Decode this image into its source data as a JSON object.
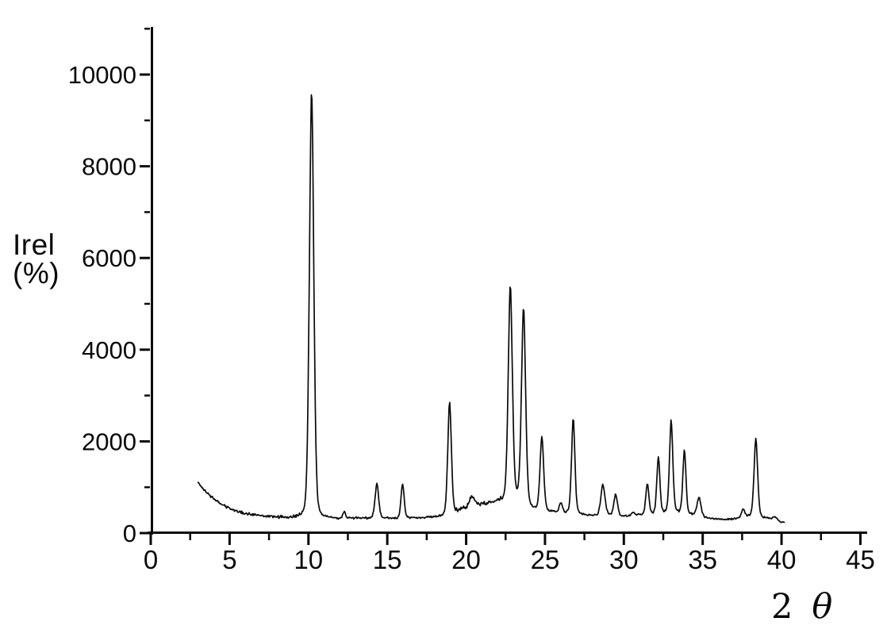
{
  "figure": {
    "background": "#ffffff",
    "ink_color": "#0a0a0a"
  },
  "chart_data": {
    "type": "line",
    "title": "",
    "xlabel": "2 θ",
    "xlabel_parts": {
      "number": "2",
      "symbol": "θ"
    },
    "ylabel": "Irel (%)",
    "ylabel_lines": [
      "Irel",
      "(%)"
    ],
    "xlim": [
      0,
      45
    ],
    "ylim": [
      0,
      11000
    ],
    "grid": false,
    "legend": null,
    "x_major_ticks": [
      0,
      5,
      10,
      15,
      20,
      25,
      30,
      35,
      40,
      45
    ],
    "x_minor_ticks": [
      2.5,
      7.5,
      12.5,
      17.5,
      22.5,
      27.5,
      32.5,
      37.5,
      42.5
    ],
    "y_major_ticks": [
      0,
      2000,
      4000,
      6000,
      8000,
      10000
    ],
    "y_minor_ticks": [
      1000,
      3000,
      5000,
      7000,
      9000,
      11000
    ],
    "data_range_two_theta": [
      3.0,
      40.2
    ],
    "noise_amplitude": 26,
    "peaks": [
      {
        "two_theta": 10.2,
        "intensity": 9650,
        "hwhm": 0.17
      },
      {
        "two_theta": 12.27,
        "intensity": 460,
        "hwhm": 0.1
      },
      {
        "two_theta": 14.34,
        "intensity": 1080,
        "hwhm": 0.14
      },
      {
        "two_theta": 15.97,
        "intensity": 1080,
        "hwhm": 0.12
      },
      {
        "two_theta": 18.95,
        "intensity": 2880,
        "hwhm": 0.14
      },
      {
        "two_theta": 20.37,
        "intensity": 800,
        "hwhm": 0.2
      },
      {
        "two_theta": 22.8,
        "intensity": 5400,
        "hwhm": 0.16
      },
      {
        "two_theta": 23.64,
        "intensity": 4900,
        "hwhm": 0.16
      },
      {
        "two_theta": 24.8,
        "intensity": 2100,
        "hwhm": 0.14
      },
      {
        "two_theta": 26.0,
        "intensity": 640,
        "hwhm": 0.12
      },
      {
        "two_theta": 26.79,
        "intensity": 2500,
        "hwhm": 0.13
      },
      {
        "two_theta": 28.67,
        "intensity": 1050,
        "hwhm": 0.16
      },
      {
        "two_theta": 29.48,
        "intensity": 840,
        "hwhm": 0.14
      },
      {
        "two_theta": 30.6,
        "intensity": 460,
        "hwhm": 0.12
      },
      {
        "two_theta": 31.49,
        "intensity": 1070,
        "hwhm": 0.12
      },
      {
        "two_theta": 32.19,
        "intensity": 1660,
        "hwhm": 0.12
      },
      {
        "two_theta": 33.0,
        "intensity": 2460,
        "hwhm": 0.13
      },
      {
        "two_theta": 33.84,
        "intensity": 1810,
        "hwhm": 0.12
      },
      {
        "two_theta": 34.76,
        "intensity": 780,
        "hwhm": 0.15
      },
      {
        "two_theta": 37.56,
        "intensity": 520,
        "hwhm": 0.13
      },
      {
        "two_theta": 38.37,
        "intensity": 2060,
        "hwhm": 0.14
      },
      {
        "two_theta": 39.6,
        "intensity": 350,
        "hwhm": 0.15
      }
    ],
    "baseline_anchors": [
      [
        3.0,
        1110
      ],
      [
        3.3,
        970
      ],
      [
        3.6,
        860
      ],
      [
        4.0,
        740
      ],
      [
        4.4,
        650
      ],
      [
        4.8,
        575
      ],
      [
        5.2,
        515
      ],
      [
        5.6,
        468
      ],
      [
        6.0,
        432
      ],
      [
        6.5,
        400
      ],
      [
        7.0,
        376
      ],
      [
        7.5,
        358
      ],
      [
        8.0,
        345
      ],
      [
        8.5,
        336
      ],
      [
        9.0,
        330
      ],
      [
        9.5,
        324
      ],
      [
        10.0,
        318
      ],
      [
        10.7,
        314
      ],
      [
        11.5,
        310
      ],
      [
        12.5,
        312
      ],
      [
        13.5,
        318
      ],
      [
        14.8,
        322
      ],
      [
        15.8,
        320
      ],
      [
        16.8,
        330
      ],
      [
        17.6,
        345
      ],
      [
        18.3,
        358
      ],
      [
        18.8,
        368
      ],
      [
        19.3,
        440
      ],
      [
        19.7,
        505
      ],
      [
        20.1,
        555
      ],
      [
        20.7,
        610
      ],
      [
        21.2,
        640
      ],
      [
        21.7,
        665
      ],
      [
        22.2,
        690
      ],
      [
        22.6,
        660
      ],
      [
        23.2,
        700
      ],
      [
        23.9,
        560
      ],
      [
        24.4,
        480
      ],
      [
        25.1,
        460
      ],
      [
        25.6,
        450
      ],
      [
        26.4,
        430
      ],
      [
        27.2,
        400
      ],
      [
        28.0,
        378
      ],
      [
        29.0,
        385
      ],
      [
        29.9,
        362
      ],
      [
        30.9,
        380
      ],
      [
        31.9,
        405
      ],
      [
        32.6,
        420
      ],
      [
        33.4,
        430
      ],
      [
        34.3,
        395
      ],
      [
        34.9,
        355
      ],
      [
        35.5,
        315
      ],
      [
        36.2,
        300
      ],
      [
        36.9,
        295
      ],
      [
        37.9,
        355
      ],
      [
        38.9,
        330
      ],
      [
        39.4,
        305
      ],
      [
        39.9,
        240
      ],
      [
        40.2,
        225
      ]
    ]
  }
}
